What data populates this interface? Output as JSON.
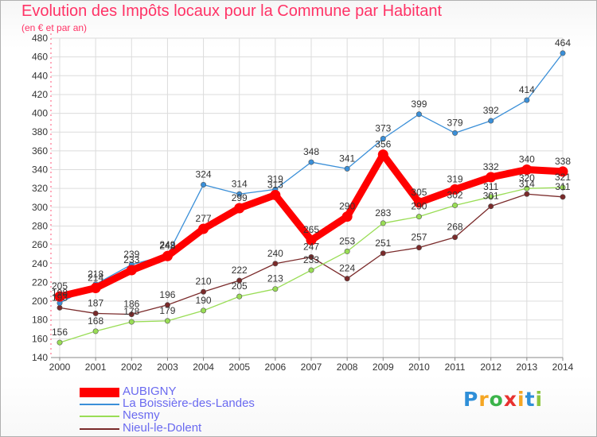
{
  "title": "Evolution des Impôts locaux pour la Commune par Habitant",
  "subtitle": "(en € et par an)",
  "logo": {
    "letters": [
      "P",
      "r",
      "o",
      "x",
      "i",
      "t",
      "i"
    ],
    "colors": [
      "#2f8fd8",
      "#f5a623",
      "#3cb44b",
      "#e8312f",
      "#f5a623",
      "#2f8fd8",
      "#8dc63f"
    ]
  },
  "chart_data": {
    "type": "line",
    "title": "Evolution des Impôts locaux pour la Commune par Habitant",
    "ylabel": "(en € et par an)",
    "xlabel": "",
    "x": [
      "2000",
      "2001",
      "2002",
      "2003",
      "2004",
      "2005",
      "2006",
      "2007",
      "2008",
      "2009",
      "2010",
      "2011",
      "2012",
      "2013",
      "2014"
    ],
    "ylim": [
      140,
      480
    ],
    "yticks": [
      140,
      160,
      180,
      200,
      220,
      240,
      260,
      280,
      300,
      320,
      340,
      360,
      380,
      400,
      420,
      440,
      460,
      480
    ],
    "legend_position": "bottom-left",
    "series": [
      {
        "name": "AUBIGNY",
        "color": "#ff0000",
        "values": [
          205,
          214,
          233,
          248,
          277,
          299,
          313,
          265,
          290,
          356,
          305,
          319,
          332,
          340,
          338
        ]
      },
      {
        "name": "La Boissière-des-Landes",
        "color": "#3a8fd8",
        "values": [
          198,
          218,
          239,
          249,
          324,
          314,
          319,
          348,
          341,
          373,
          399,
          379,
          392,
          414,
          464
        ]
      },
      {
        "name": "Nesmy",
        "color": "#99dd55",
        "values": [
          156,
          168,
          178,
          179,
          190,
          205,
          213,
          233,
          253,
          283,
          290,
          302,
          311,
          320,
          321
        ]
      },
      {
        "name": "Nieul-le-Dolent",
        "color": "#7a2a2a",
        "values": [
          193,
          187,
          186,
          196,
          210,
          222,
          240,
          247,
          224,
          251,
          257,
          268,
          301,
          314,
          311
        ]
      }
    ]
  }
}
